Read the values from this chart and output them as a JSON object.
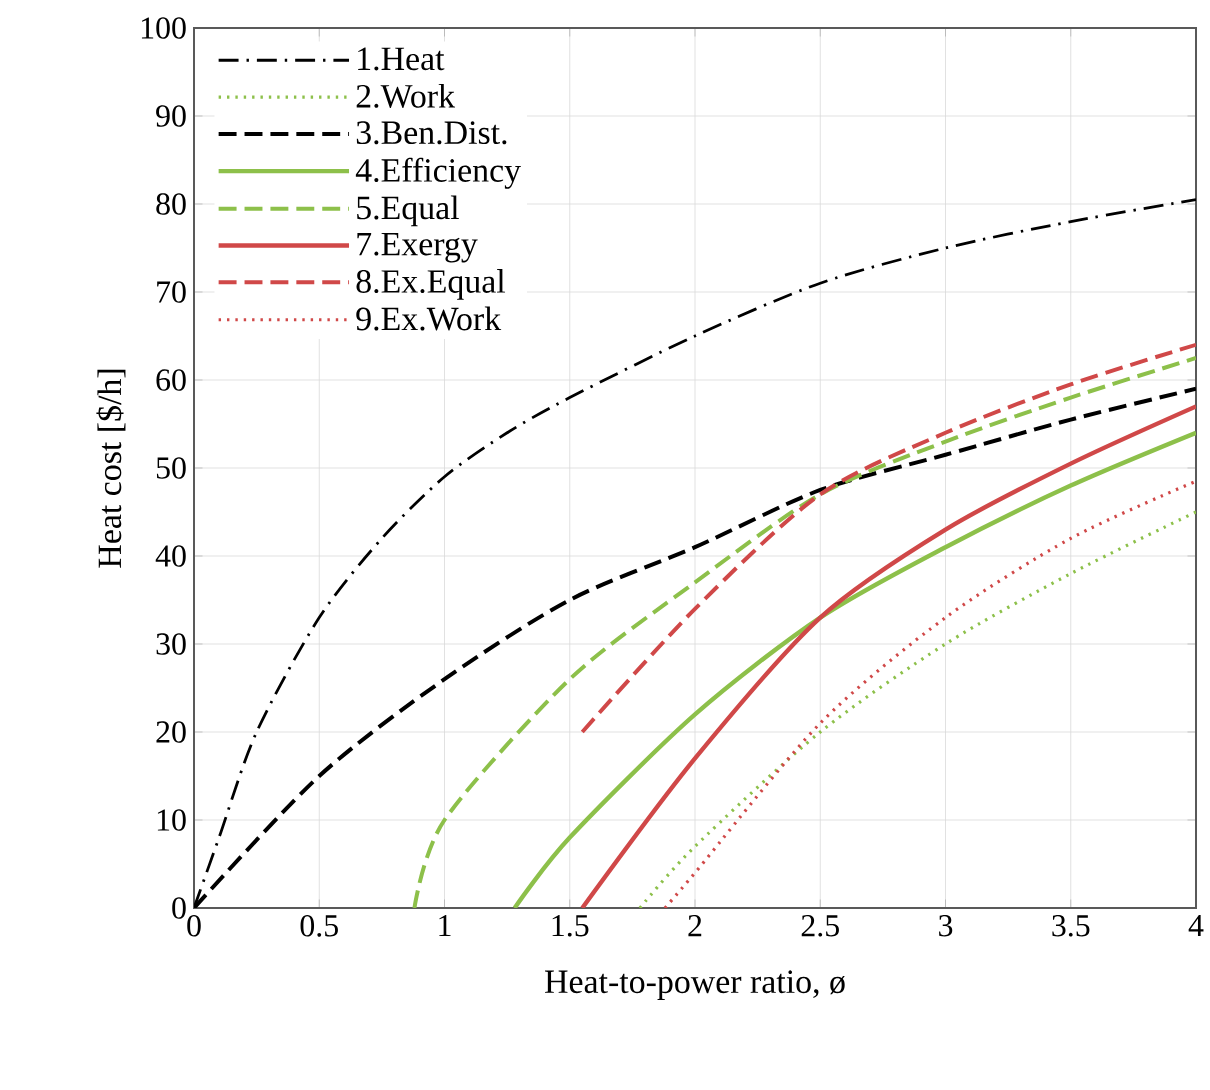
{
  "chart_data": {
    "type": "line",
    "xlabel": "Heat-to-power ratio, ø",
    "ylabel": "Heat cost [$/h]",
    "xlim": [
      0,
      4
    ],
    "ylim": [
      0,
      100
    ],
    "xticks": [
      0,
      0.5,
      1,
      1.5,
      2,
      2.5,
      3,
      3.5,
      4
    ],
    "yticks": [
      0,
      10,
      20,
      30,
      40,
      50,
      60,
      70,
      80,
      90,
      100
    ],
    "grid": true,
    "legend": "top left",
    "marker": "none",
    "series": [
      {
        "name": "1.Heat",
        "color": "#000000",
        "line_style": "dashdot",
        "x": [
          0,
          0.1,
          0.25,
          0.5,
          0.75,
          1,
          1.25,
          1.5,
          2,
          2.5,
          3,
          3.5,
          4
        ],
        "values": [
          0,
          8,
          20,
          33,
          42,
          49,
          54,
          58,
          65,
          71,
          75,
          78,
          80.5
        ]
      },
      {
        "name": "2.Work",
        "color": "#8dc04a",
        "line_style": "dotted",
        "x": [
          1.78,
          2,
          2.5,
          3,
          3.5,
          4
        ],
        "values": [
          0,
          7,
          20,
          30,
          38,
          45
        ]
      },
      {
        "name": "3.Ben.Dist.",
        "color": "#000000",
        "line_style": "dashed",
        "x": [
          0,
          0.5,
          1,
          1.5,
          2,
          2.5,
          3,
          3.5,
          4
        ],
        "values": [
          0,
          15,
          26,
          35,
          41,
          47.5,
          51.5,
          55.5,
          59
        ]
      },
      {
        "name": "4.Efficiency",
        "color": "#8dc04a",
        "line_style": "solid",
        "x": [
          1.28,
          1.5,
          2,
          2.5,
          3,
          3.5,
          4
        ],
        "values": [
          0,
          8,
          22,
          33,
          41,
          48,
          54
        ]
      },
      {
        "name": "5.Equal",
        "color": "#8dc04a",
        "line_style": "dashed",
        "x": [
          0.88,
          1,
          1.5,
          2,
          2.5,
          3,
          3.5,
          4
        ],
        "values": [
          0,
          10,
          26,
          37,
          47,
          53,
          58,
          62.5
        ]
      },
      {
        "name": "7.Exergy",
        "color": "#d04848",
        "line_style": "solid",
        "x": [
          1.55,
          2,
          2.5,
          3,
          3.5,
          4
        ],
        "values": [
          0,
          17,
          33,
          43,
          50.5,
          57
        ]
      },
      {
        "name": "8.Ex.Equal",
        "color": "#d04848",
        "line_style": "dashed",
        "x": [
          1.55,
          2,
          2.5,
          3,
          3.5,
          4
        ],
        "values": [
          20,
          34,
          47,
          54,
          59.5,
          64
        ]
      },
      {
        "name": "9.Ex.Work",
        "color": "#d04848",
        "line_style": "dotted",
        "x": [
          1.88,
          2,
          2.5,
          3,
          3.5,
          4
        ],
        "values": [
          0,
          4,
          21,
          33,
          42,
          48.5
        ]
      }
    ]
  }
}
